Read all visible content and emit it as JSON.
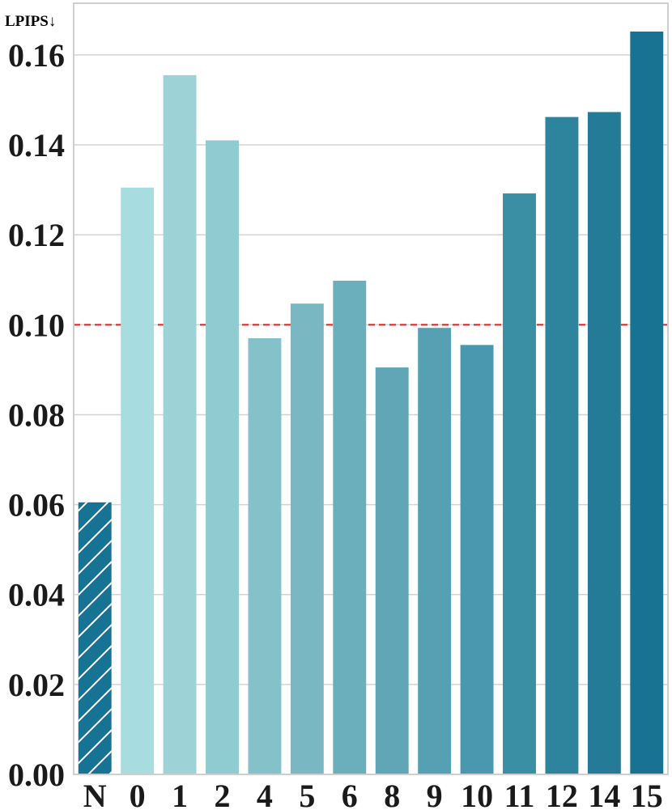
{
  "chart_data": {
    "type": "bar",
    "title": "",
    "xlabel": "",
    "ylabel": "LPIPS↓",
    "categories": [
      "N",
      "0",
      "1",
      "2",
      "4",
      "5",
      "6",
      "8",
      "9",
      "10",
      "11",
      "12",
      "14",
      "15"
    ],
    "values": [
      0.0605,
      0.1305,
      0.1555,
      0.141,
      0.097,
      0.1047,
      0.1098,
      0.0905,
      0.0993,
      0.0955,
      0.1292,
      0.1462,
      0.1473,
      0.1652
    ],
    "colors": [
      "#167393",
      "#a8dde0",
      "#9dd3d7",
      "#90cbd1",
      "#84c1c9",
      "#79b8c3",
      "#6cafbc",
      "#60a6b7",
      "#55a0b3",
      "#4a97b0",
      "#3a8fa4",
      "#2f849d",
      "#247b98",
      "#177391"
    ],
    "hatched": [
      "N"
    ],
    "reference_line": {
      "value": 0.1,
      "color": "#e41a1c",
      "style": "dashed"
    },
    "yticks": [
      "0.00",
      "0.02",
      "0.04",
      "0.06",
      "0.08",
      "0.10",
      "0.12",
      "0.14",
      "0.16"
    ],
    "ylim": [
      0,
      0.1715
    ],
    "grid": true
  }
}
